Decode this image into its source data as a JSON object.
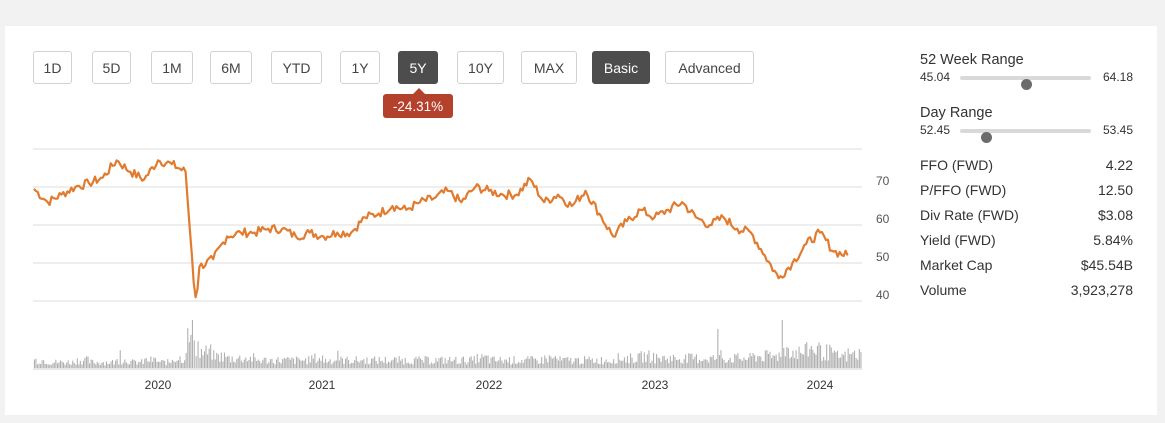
{
  "range_buttons": [
    {
      "label": "1D",
      "active": false
    },
    {
      "label": "5D",
      "active": false
    },
    {
      "label": "1M",
      "active": false
    },
    {
      "label": "6M",
      "active": false
    },
    {
      "label": "YTD",
      "active": false
    },
    {
      "label": "1Y",
      "active": false
    },
    {
      "label": "5Y",
      "active": true
    },
    {
      "label": "10Y",
      "active": false
    },
    {
      "label": "MAX",
      "active": false
    }
  ],
  "mode_buttons": [
    {
      "label": "Basic",
      "active": true
    },
    {
      "label": "Advanced",
      "active": false
    }
  ],
  "change_badge": "-24.31%",
  "colors": {
    "line": "#e07b2f",
    "badge": "#b3412c",
    "active_button": "#4d4d4d",
    "volume": "#b0b0b0"
  },
  "stats": {
    "week52": {
      "title": "52 Week Range",
      "low": "45.04",
      "high": "64.18",
      "position": 0.5
    },
    "day": {
      "title": "Day Range",
      "low": "52.45",
      "high": "53.45",
      "position": 0.2
    },
    "rows": [
      {
        "label": "FFO (FWD)",
        "value": "4.22"
      },
      {
        "label": "P/FFO (FWD)",
        "value": "12.50"
      },
      {
        "label": "Div Rate (FWD)",
        "value": "$3.08"
      },
      {
        "label": "Yield (FWD)",
        "value": "5.84%"
      },
      {
        "label": "Market Cap",
        "value": "$45.54B"
      },
      {
        "label": "Volume",
        "value": "3,923,278"
      }
    ]
  },
  "chart_data": {
    "type": "line",
    "y_ticks": [
      "70",
      "60",
      "50",
      "40"
    ],
    "ylim": [
      40,
      80
    ],
    "x_ticks": [
      "2020",
      "2021",
      "2022",
      "2023",
      "2024"
    ],
    "x": [
      "2019-04",
      "2019-05",
      "2019-06",
      "2019-07",
      "2019-08",
      "2019-09",
      "2019-10",
      "2019-11",
      "2019-12",
      "2020-01",
      "2020-02",
      "2020-03-01",
      "2020-03-15",
      "2020-03-23",
      "2020-04",
      "2020-05",
      "2020-06",
      "2020-07",
      "2020-08",
      "2020-09",
      "2020-10",
      "2020-11",
      "2020-12",
      "2021-01",
      "2021-02",
      "2021-03",
      "2021-04",
      "2021-05",
      "2021-06",
      "2021-07",
      "2021-08",
      "2021-09",
      "2021-10",
      "2021-11",
      "2021-12",
      "2022-01",
      "2022-02",
      "2022-03",
      "2022-04",
      "2022-05",
      "2022-06",
      "2022-07",
      "2022-08",
      "2022-09",
      "2022-10",
      "2022-11",
      "2022-12",
      "2023-01",
      "2023-02",
      "2023-03",
      "2023-04",
      "2023-05",
      "2023-06",
      "2023-07",
      "2023-08",
      "2023-09",
      "2023-10",
      "2023-11",
      "2023-12",
      "2024-01",
      "2024-02",
      "2024-03"
    ],
    "values": [
      69.5,
      66,
      68,
      70,
      71,
      72.5,
      77,
      74,
      72,
      77,
      76,
      74,
      52,
      41,
      49,
      51,
      57,
      58,
      58,
      59,
      59,
      57,
      58,
      57,
      58,
      58,
      62,
      63,
      65,
      64,
      66,
      67,
      69,
      66,
      70,
      69,
      68,
      68,
      72,
      66,
      68,
      65,
      69,
      63,
      57,
      61,
      64,
      62,
      64,
      66,
      62,
      60,
      62,
      59,
      58,
      52,
      46,
      50,
      55,
      58,
      53,
      52
    ],
    "volume": [
      4,
      3,
      3,
      4,
      3,
      3,
      4,
      3,
      4,
      3,
      5,
      15,
      20,
      12,
      8,
      6,
      5,
      5,
      4,
      4,
      4,
      4,
      5,
      4,
      4,
      4,
      4,
      4,
      4,
      4,
      4,
      4,
      4,
      4,
      5,
      4,
      4,
      4,
      4,
      5,
      4,
      4,
      4,
      4,
      5,
      5,
      6,
      5,
      5,
      5,
      5,
      5,
      5,
      5,
      6,
      6,
      10,
      8,
      10,
      8,
      6,
      7
    ]
  }
}
